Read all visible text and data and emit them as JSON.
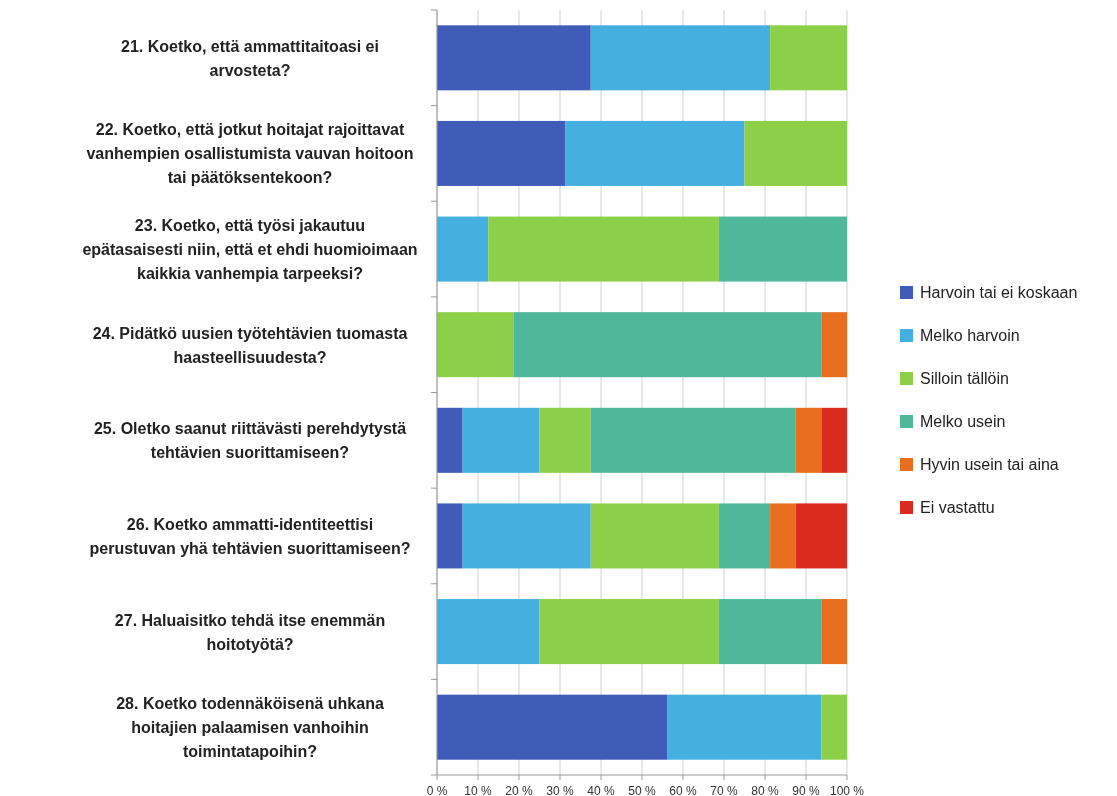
{
  "chart_data": {
    "type": "bar",
    "orientation": "horizontal",
    "stacked": true,
    "categories": [
      "21. Koetko, että ammattitaitoasi ei\narvosteta?",
      "22. Koetko, että jotkut hoitajat rajoittavat\nvanhempien osallistumista vauvan hoitoon\ntai päätöksentekoon?",
      "23. Koetko, että työsi jakautuu\nepätasaisesti niin, että et ehdi huomioimaan\nkaikkia vanhempia tarpeeksi?",
      "24. Pidätkö uusien työtehtävien tuomasta\nhaasteellisuudesta?",
      "25. Oletko saanut riittävästi perehdytystä\ntehtävien suorittamiseen?",
      "26. Koetko ammatti-identiteettisi\nperustuvan yhä tehtävien suorittamiseen?",
      "27. Haluaisitko tehdä itse enemmän\nhoitotyötä?",
      "28. Koetko todennäköisenä uhkana\nhoitajien palaamisen vanhoihin\ntoimintatapoihin?"
    ],
    "series": [
      {
        "name": "Harvoin tai ei koskaan",
        "color": "#3f5cb8",
        "values": [
          37.5,
          31.25,
          0,
          0,
          6.25,
          6.25,
          0,
          56.25
        ]
      },
      {
        "name": "Melko harvoin",
        "color": "#45b0e0",
        "values": [
          43.75,
          43.75,
          12.5,
          0,
          18.75,
          31.25,
          25,
          37.5
        ]
      },
      {
        "name": "Silloin tällöin",
        "color": "#8cd04a",
        "values": [
          18.75,
          25,
          56.25,
          18.75,
          12.5,
          31.25,
          43.75,
          6.25
        ]
      },
      {
        "name": "Melko usein",
        "color": "#4fb89a",
        "values": [
          0,
          0,
          31.25,
          75,
          50,
          12.5,
          25,
          0
        ]
      },
      {
        "name": "Hyvin usein tai aina",
        "color": "#e86d1f",
        "values": [
          0,
          0,
          0,
          6.25,
          6.25,
          6.25,
          6.25,
          0
        ]
      },
      {
        "name": "Ei vastattu",
        "color": "#d92b1e",
        "values": [
          0,
          0,
          0,
          0,
          6.25,
          12.5,
          0,
          0
        ]
      }
    ],
    "xlim": [
      0,
      100
    ],
    "xticks": [
      {
        "value": 0,
        "label": "0 %"
      },
      {
        "value": 10,
        "label": "10 %"
      },
      {
        "value": 20,
        "label": "20 %"
      },
      {
        "value": 30,
        "label": "30 %"
      },
      {
        "value": 40,
        "label": "40 %"
      },
      {
        "value": 50,
        "label": "50 %"
      },
      {
        "value": 60,
        "label": "60 %"
      },
      {
        "value": 70,
        "label": "70 %"
      },
      {
        "value": 80,
        "label": "80 %"
      },
      {
        "value": 90,
        "label": "90 %"
      },
      {
        "value": 100,
        "label": "100 %"
      }
    ],
    "grid": "x",
    "legend": "right"
  }
}
